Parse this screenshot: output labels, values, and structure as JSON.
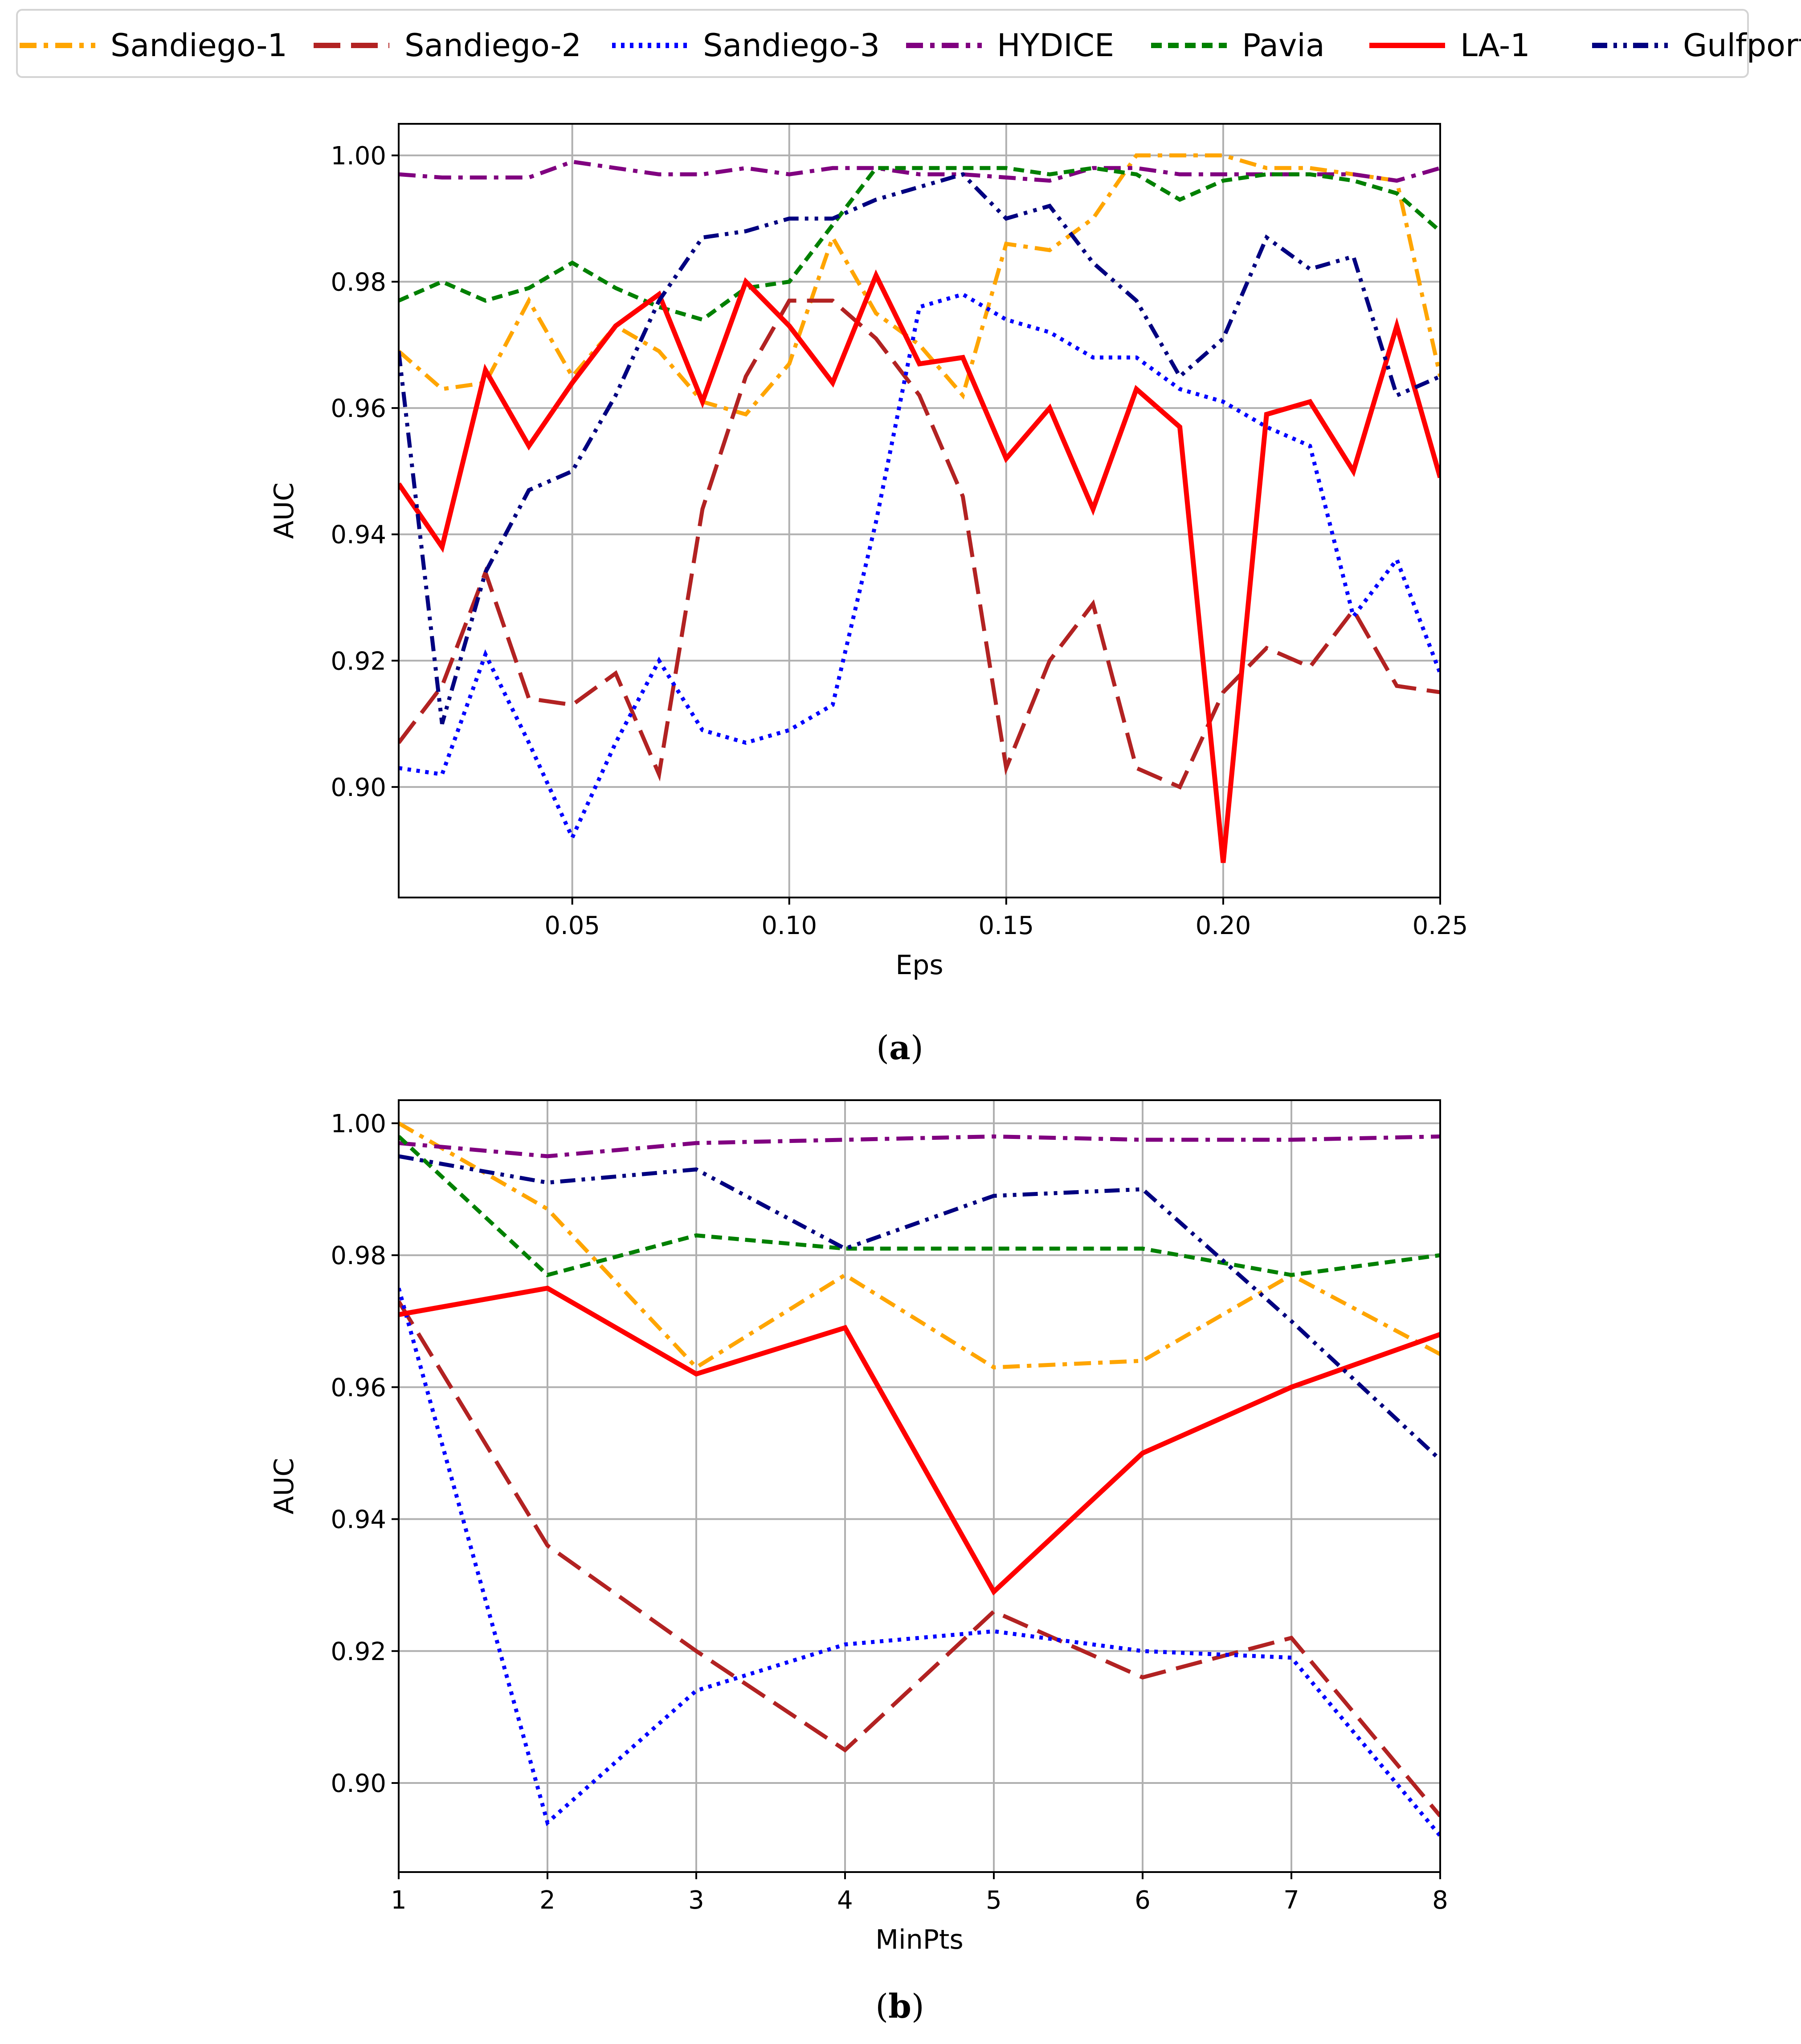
{
  "legend": [
    {
      "key": "sd1",
      "label": "Sandiego-1"
    },
    {
      "key": "sd2",
      "label": "Sandiego-2"
    },
    {
      "key": "sd3",
      "label": "Sandiego-3"
    },
    {
      "key": "hydice",
      "label": "HYDICE"
    },
    {
      "key": "pavia",
      "label": "Pavia"
    },
    {
      "key": "la1",
      "label": "LA-1"
    },
    {
      "key": "gulfport",
      "label": "Gulfport"
    }
  ],
  "styles": {
    "sd1": {
      "color": "#ffa500",
      "dash": "dashdot"
    },
    "sd2": {
      "color": "#b22222",
      "dash": "dashed"
    },
    "sd3": {
      "color": "#0000ff",
      "dash": "dotted"
    },
    "hydice": {
      "color": "#800080",
      "dash": "dashdot"
    },
    "pavia": {
      "color": "#008000",
      "dash": "densedash"
    },
    "la1": {
      "color": "#ff0000",
      "dash": "solid"
    },
    "gulfport": {
      "color": "#000080",
      "dash": "dashdotdot"
    }
  },
  "panels": {
    "a": {
      "letter": "a"
    },
    "b": {
      "letter": "b"
    }
  },
  "chart_data": [
    {
      "id": "a",
      "type": "line",
      "xlabel": "Eps",
      "ylabel": "AUC",
      "xlim": [
        0.01,
        0.25
      ],
      "ylim": [
        0.8825,
        1.005
      ],
      "xticks": [
        0.05,
        0.1,
        0.15,
        0.2,
        0.25
      ],
      "xtick_labels": [
        "0.05",
        "0.10",
        "0.15",
        "0.20",
        "0.25"
      ],
      "yticks": [
        0.9,
        0.92,
        0.94,
        0.96,
        0.98,
        1.0
      ],
      "ytick_labels": [
        "0.90",
        "0.92",
        "0.94",
        "0.96",
        "0.98",
        "1.00"
      ],
      "grid": true,
      "x": [
        0.01,
        0.02,
        0.03,
        0.04,
        0.05,
        0.06,
        0.07,
        0.08,
        0.09,
        0.1,
        0.11,
        0.12,
        0.13,
        0.14,
        0.15,
        0.16,
        0.17,
        0.18,
        0.19,
        0.2,
        0.21,
        0.22,
        0.23,
        0.24,
        0.25
      ],
      "series": [
        {
          "key": "sd1",
          "name": "Sandiego-1",
          "values": [
            0.969,
            0.963,
            0.964,
            0.977,
            0.965,
            0.973,
            0.969,
            0.961,
            0.959,
            0.967,
            0.987,
            0.975,
            0.97,
            0.962,
            0.986,
            0.985,
            0.99,
            1.0,
            1.0,
            1.0,
            0.998,
            0.998,
            0.997,
            0.996,
            0.965
          ]
        },
        {
          "key": "sd2",
          "name": "Sandiego-2",
          "values": [
            0.907,
            0.916,
            0.934,
            0.914,
            0.913,
            0.918,
            0.902,
            0.944,
            0.965,
            0.977,
            0.977,
            0.971,
            0.962,
            0.946,
            0.903,
            0.92,
            0.929,
            0.903,
            0.9,
            0.915,
            0.922,
            0.919,
            0.928,
            0.916,
            0.915
          ]
        },
        {
          "key": "sd3",
          "name": "Sandiego-3",
          "values": [
            0.903,
            0.902,
            0.921,
            0.907,
            0.892,
            0.907,
            0.92,
            0.909,
            0.907,
            0.909,
            0.913,
            0.942,
            0.976,
            0.978,
            0.974,
            0.972,
            0.968,
            0.968,
            0.963,
            0.961,
            0.957,
            0.954,
            0.927,
            0.936,
            0.918
          ]
        },
        {
          "key": "hydice",
          "name": "HYDICE",
          "values": [
            0.997,
            0.9965,
            0.9965,
            0.9965,
            0.999,
            0.998,
            0.997,
            0.997,
            0.998,
            0.997,
            0.998,
            0.998,
            0.997,
            0.997,
            0.9965,
            0.996,
            0.998,
            0.998,
            0.997,
            0.997,
            0.997,
            0.997,
            0.997,
            0.996,
            0.998
          ]
        },
        {
          "key": "pavia",
          "name": "Pavia",
          "values": [
            0.977,
            0.98,
            0.977,
            0.979,
            0.983,
            0.979,
            0.976,
            0.974,
            0.979,
            0.98,
            0.989,
            0.998,
            0.998,
            0.998,
            0.998,
            0.997,
            0.998,
            0.997,
            0.993,
            0.996,
            0.997,
            0.997,
            0.996,
            0.994,
            0.988
          ]
        },
        {
          "key": "la1",
          "name": "LA-1",
          "values": [
            0.948,
            0.938,
            0.966,
            0.954,
            0.964,
            0.973,
            0.978,
            0.961,
            0.98,
            0.973,
            0.964,
            0.981,
            0.967,
            0.968,
            0.952,
            0.96,
            0.944,
            0.963,
            0.957,
            0.888,
            0.959,
            0.961,
            0.95,
            0.973,
            0.949
          ]
        },
        {
          "key": "gulfport",
          "name": "Gulfport",
          "values": [
            0.969,
            0.91,
            0.934,
            0.947,
            0.95,
            0.962,
            0.977,
            0.987,
            0.988,
            0.99,
            0.99,
            0.993,
            0.995,
            0.997,
            0.99,
            0.992,
            0.983,
            0.977,
            0.965,
            0.971,
            0.987,
            0.982,
            0.984,
            0.962,
            0.965
          ]
        }
      ]
    },
    {
      "id": "b",
      "type": "line",
      "xlabel": "MinPts",
      "ylabel": "AUC",
      "xlim": [
        1,
        8
      ],
      "ylim": [
        0.8865,
        1.0035
      ],
      "xticks": [
        1,
        2,
        3,
        4,
        5,
        6,
        7,
        8
      ],
      "xtick_labels": [
        "1",
        "2",
        "3",
        "4",
        "5",
        "6",
        "7",
        "8"
      ],
      "yticks": [
        0.9,
        0.92,
        0.94,
        0.96,
        0.98,
        1.0
      ],
      "ytick_labels": [
        "0.90",
        "0.92",
        "0.94",
        "0.96",
        "0.98",
        "1.00"
      ],
      "grid": true,
      "x": [
        1,
        2,
        3,
        4,
        5,
        6,
        7,
        8
      ],
      "series": [
        {
          "key": "sd1",
          "name": "Sandiego-1",
          "values": [
            1.0,
            0.987,
            0.963,
            0.977,
            0.963,
            0.964,
            0.977,
            0.965
          ]
        },
        {
          "key": "sd2",
          "name": "Sandiego-2",
          "values": [
            0.973,
            0.936,
            0.92,
            0.905,
            0.926,
            0.916,
            0.922,
            0.895
          ]
        },
        {
          "key": "sd3",
          "name": "Sandiego-3",
          "values": [
            0.975,
            0.894,
            0.914,
            0.921,
            0.923,
            0.92,
            0.919,
            0.892
          ]
        },
        {
          "key": "hydice",
          "name": "HYDICE",
          "values": [
            0.997,
            0.995,
            0.997,
            0.9975,
            0.998,
            0.9975,
            0.9975,
            0.998
          ]
        },
        {
          "key": "pavia",
          "name": "Pavia",
          "values": [
            0.998,
            0.977,
            0.983,
            0.981,
            0.981,
            0.981,
            0.977,
            0.98
          ]
        },
        {
          "key": "la1",
          "name": "LA-1",
          "values": [
            0.971,
            0.975,
            0.962,
            0.969,
            0.929,
            0.95,
            0.96,
            0.968
          ]
        },
        {
          "key": "gulfport",
          "name": "Gulfport",
          "values": [
            0.995,
            0.991,
            0.993,
            0.981,
            0.989,
            0.99,
            0.97,
            0.949
          ]
        }
      ]
    }
  ]
}
